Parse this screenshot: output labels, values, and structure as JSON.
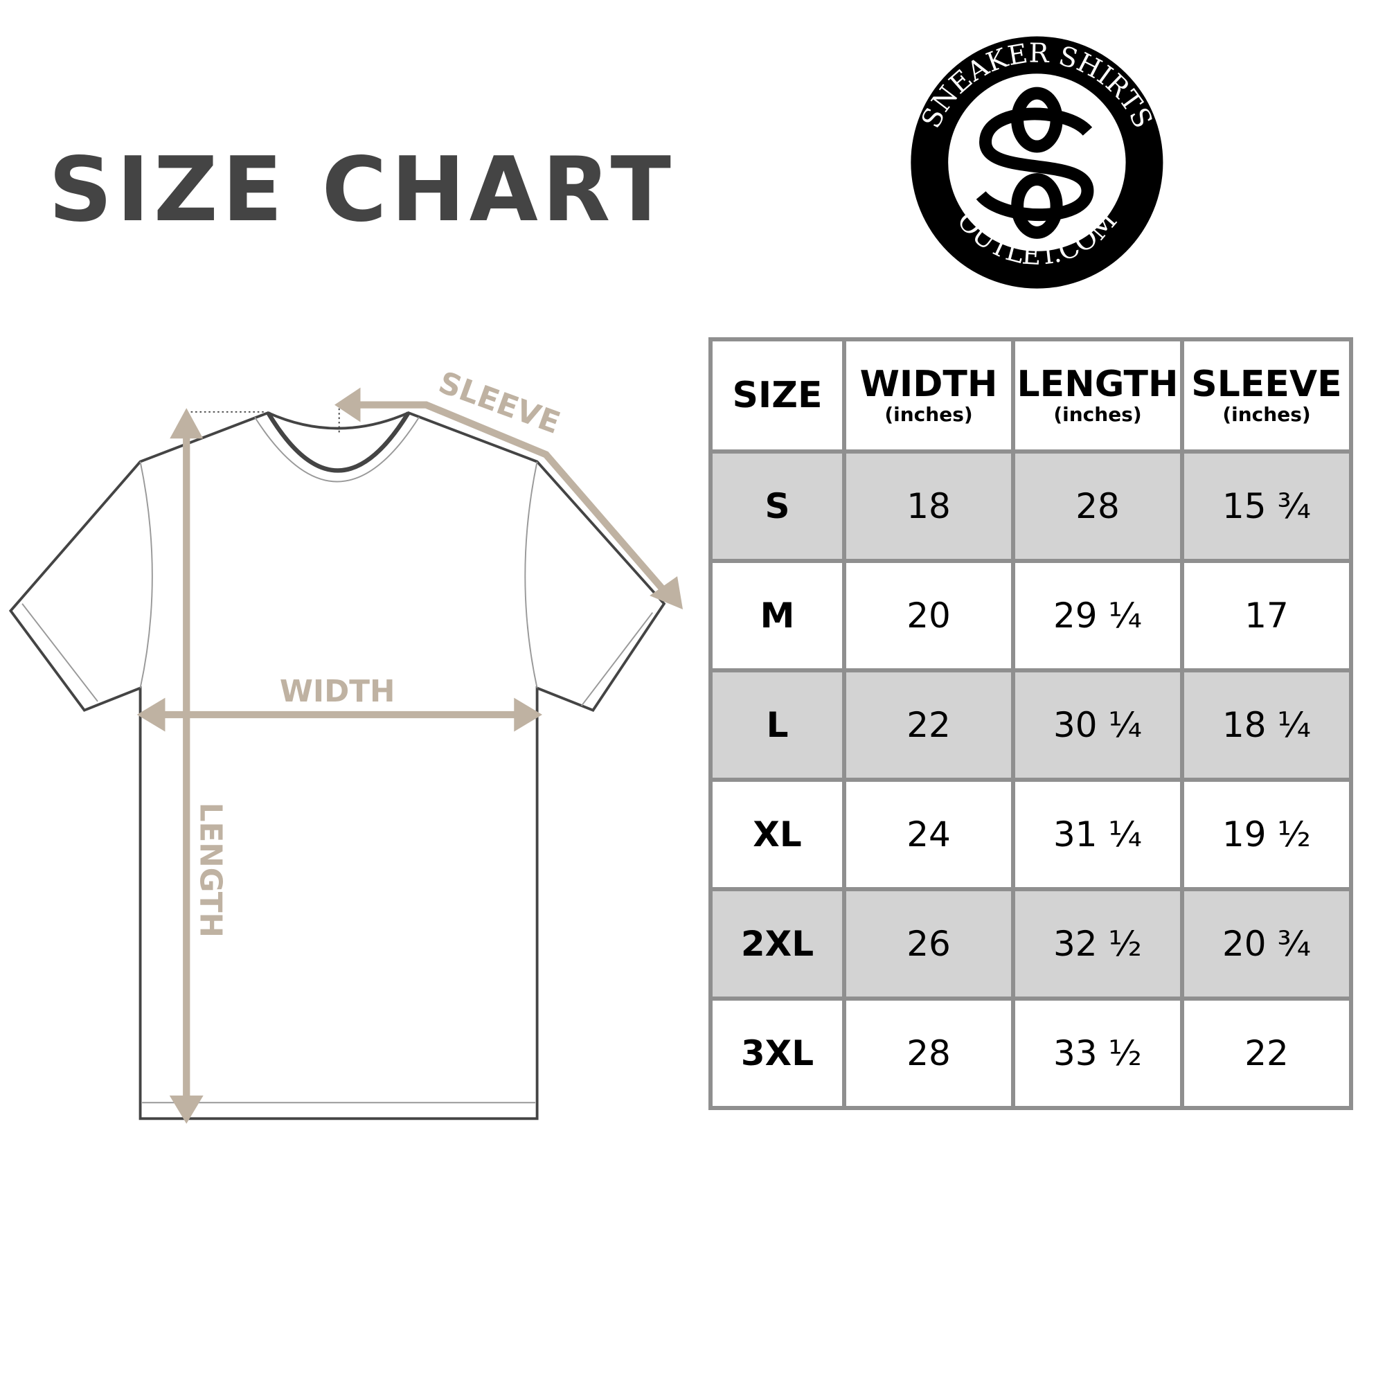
{
  "title": "SIZE CHART",
  "logo": {
    "top_text": "SNEAKER SHIRTS",
    "bottom_text": "OUTLET.COM",
    "monogram": "SO"
  },
  "diagram": {
    "labels": {
      "sleeve": "SLEEVE",
      "width": "WIDTH",
      "length": "LENGTH"
    },
    "accent_color": "#bfb2a2"
  },
  "table": {
    "headers": [
      {
        "label": "SIZE",
        "unit": ""
      },
      {
        "label": "WIDTH",
        "unit": "(inches)"
      },
      {
        "label": "LENGTH",
        "unit": "(inches)"
      },
      {
        "label": "SLEEVE",
        "unit": "(inches)"
      }
    ],
    "rows": [
      [
        "S",
        "18",
        "28",
        "15 ¾"
      ],
      [
        "M",
        "20",
        "29 ¼",
        "17"
      ],
      [
        "L",
        "22",
        "30 ¼",
        "18 ¼"
      ],
      [
        "XL",
        "24",
        "31 ¼",
        "19 ½"
      ],
      [
        "2XL",
        "26",
        "32 ½",
        "20 ¾"
      ],
      [
        "3XL",
        "28",
        "33 ½",
        "22"
      ]
    ],
    "shade_color": "#d3d3d3",
    "border_color": "#8f8f8f"
  }
}
